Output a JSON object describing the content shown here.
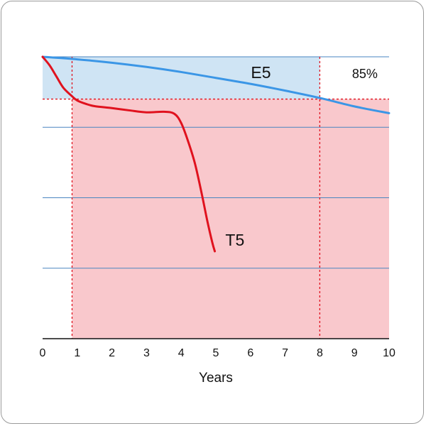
{
  "chart_data": {
    "type": "line",
    "title": "",
    "xlabel": "Years",
    "ylabel": "",
    "xlim": [
      0,
      10
    ],
    "ylim": [
      0,
      100
    ],
    "x_ticks": [
      0,
      1,
      2,
      3,
      4,
      5,
      6,
      7,
      8,
      9,
      10
    ],
    "y_gridlines": [
      25,
      50,
      75,
      100
    ],
    "grid": true,
    "threshold": {
      "value": 85,
      "label": "85%"
    },
    "markers_x": [
      0.85,
      8
    ],
    "series": [
      {
        "name": "E5",
        "color": "#3b96e6",
        "x": [
          0,
          1,
          2,
          3,
          4,
          5,
          6,
          7,
          8,
          9,
          10
        ],
        "y": [
          100,
          99.1,
          97.9,
          96.4,
          94.6,
          92.5,
          90.4,
          88.0,
          85.4,
          82.4,
          80.0
        ]
      },
      {
        "name": "T5",
        "color": "#e0121e",
        "x": [
          0,
          0.2,
          0.4,
          0.6,
          0.85,
          1.0,
          1.25,
          1.5,
          2.0,
          2.5,
          3.0,
          3.5,
          3.8,
          4.0,
          4.2,
          4.4,
          4.6,
          4.75,
          4.9,
          4.97
        ],
        "y": [
          100,
          97,
          93,
          89,
          86,
          84.5,
          83.3,
          82.5,
          81.8,
          81.0,
          80.3,
          80.5,
          79.8,
          76.5,
          70,
          62,
          51,
          42,
          34,
          31
        ]
      }
    ],
    "colors": {
      "safe_region": "#cfe4f4",
      "fail_region": "#f9c8cc",
      "gridline": "#4a86c0",
      "marker_line": "#e0121e"
    }
  }
}
